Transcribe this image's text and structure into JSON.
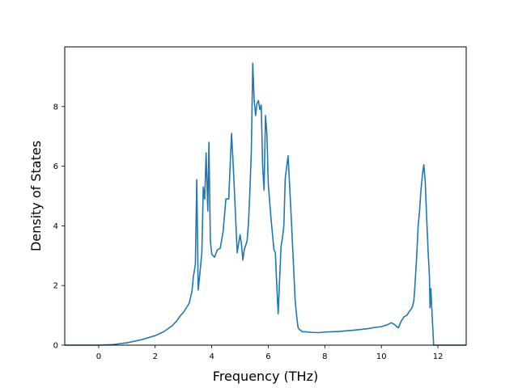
{
  "chart_data": {
    "type": "line",
    "title": "",
    "xlabel": "Frequency (THz)",
    "ylabel": "Density of States",
    "xlim": [
      -1.2,
      13.0
    ],
    "ylim": [
      0,
      10.0
    ],
    "xticks": [
      0,
      2,
      4,
      6,
      8,
      10,
      12
    ],
    "yticks": [
      0,
      2,
      4,
      6,
      8
    ],
    "grid": false,
    "legend": "none",
    "line_color": "#1f77b4",
    "series": [
      {
        "x": [
          -1.2,
          -0.5,
          0.0,
          0.5,
          1.0,
          1.5,
          2.0,
          2.3,
          2.6,
          2.75,
          2.9,
          3.0,
          3.1,
          3.2,
          3.3,
          3.35,
          3.42,
          3.47,
          3.52,
          3.58,
          3.65,
          3.7,
          3.75,
          3.8,
          3.86,
          3.9,
          3.95,
          4.0,
          4.1,
          4.2,
          4.3,
          4.4,
          4.5,
          4.6,
          4.7,
          4.75,
          4.8,
          4.9,
          5.0,
          5.05,
          5.1,
          5.15,
          5.2,
          5.25,
          5.3,
          5.35,
          5.4,
          5.45,
          5.5,
          5.55,
          5.6,
          5.65,
          5.7,
          5.75,
          5.8,
          5.85,
          5.9,
          5.95,
          6.0,
          6.05,
          6.1,
          6.15,
          6.2,
          6.25,
          6.3,
          6.35,
          6.4,
          6.45,
          6.5,
          6.55,
          6.6,
          6.7,
          6.8,
          6.9,
          6.95,
          7.0,
          7.05,
          7.1,
          7.15,
          7.2,
          7.25,
          7.3,
          7.4,
          7.5,
          7.8,
          8.0,
          8.5,
          9.0,
          9.5,
          9.8,
          10.0,
          10.2,
          10.35,
          10.45,
          10.55,
          10.6,
          10.7,
          10.8,
          10.9,
          11.0,
          11.05,
          11.1,
          11.15,
          11.2,
          11.25,
          11.3,
          11.35,
          11.4,
          11.45,
          11.5,
          11.55,
          11.6,
          11.65,
          11.7,
          11.72,
          11.75,
          11.8,
          11.85,
          11.9,
          12.0,
          12.5,
          13.0
        ],
        "y": [
          0.0,
          0.0,
          0.0,
          0.02,
          0.08,
          0.18,
          0.32,
          0.45,
          0.65,
          0.8,
          1.0,
          1.1,
          1.25,
          1.4,
          1.8,
          2.3,
          2.7,
          5.55,
          1.85,
          2.4,
          3.1,
          5.3,
          4.9,
          6.45,
          4.5,
          6.8,
          3.5,
          3.05,
          2.95,
          3.2,
          3.25,
          3.8,
          4.9,
          4.9,
          7.1,
          6.2,
          5.2,
          3.1,
          3.7,
          3.4,
          2.85,
          3.2,
          3.35,
          3.5,
          4.1,
          5.2,
          6.5,
          9.45,
          8.2,
          7.7,
          8.1,
          8.2,
          7.9,
          8.05,
          6.0,
          5.2,
          7.7,
          7.1,
          5.4,
          4.8,
          4.2,
          3.7,
          3.2,
          3.1,
          2.0,
          1.05,
          2.2,
          3.3,
          3.6,
          4.0,
          5.6,
          6.35,
          4.5,
          2.5,
          1.5,
          1.0,
          0.6,
          0.52,
          0.5,
          0.45,
          0.45,
          0.45,
          0.44,
          0.43,
          0.42,
          0.44,
          0.46,
          0.5,
          0.55,
          0.6,
          0.62,
          0.68,
          0.75,
          0.7,
          0.62,
          0.58,
          0.8,
          0.95,
          1.0,
          1.15,
          1.2,
          1.3,
          1.5,
          2.2,
          3.0,
          4.0,
          4.5,
          5.2,
          5.7,
          6.05,
          5.5,
          4.3,
          3.2,
          2.3,
          1.25,
          1.9,
          0.9,
          0.0,
          0.0,
          0.0,
          0.0,
          0.0
        ]
      }
    ]
  }
}
